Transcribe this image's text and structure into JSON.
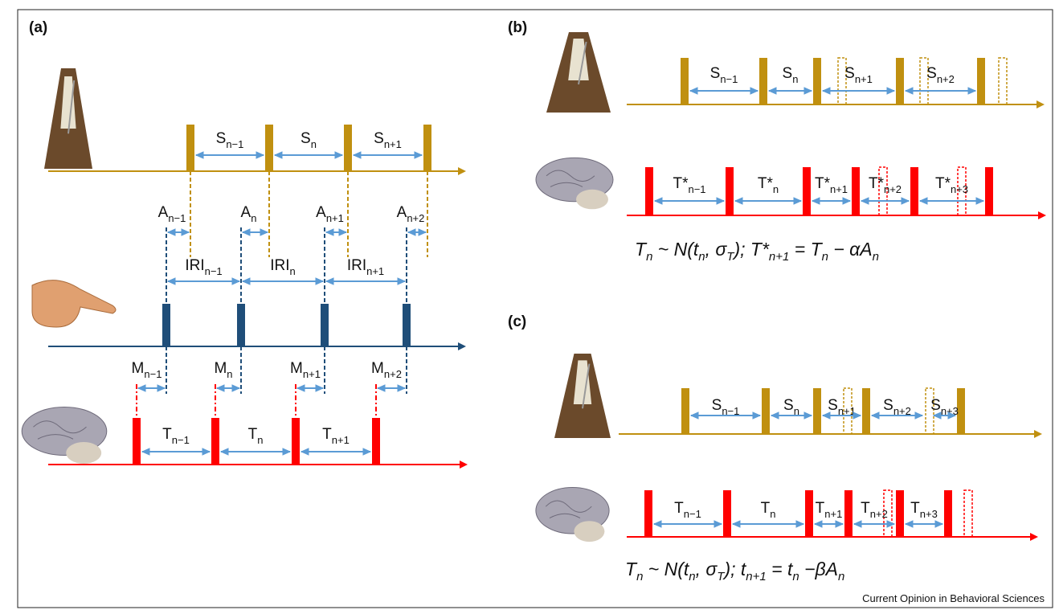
{
  "panels": [
    {
      "label": "(a)"
    },
    {
      "label": "(b)"
    },
    {
      "label": "(c)"
    }
  ],
  "panel_a": {
    "stimulus_intervals": [
      {
        "base": "S",
        "sub": "n−1"
      },
      {
        "base": "S",
        "sub": "n"
      },
      {
        "base": "S",
        "sub": "n+1"
      }
    ],
    "asynchronies": [
      {
        "base": "A",
        "sub": "n−1"
      },
      {
        "base": "A",
        "sub": "n"
      },
      {
        "base": "A",
        "sub": "n+1"
      },
      {
        "base": "A",
        "sub": "n+2"
      }
    ],
    "inter_response_intervals": [
      {
        "base": "IRI",
        "sub": "n−1"
      },
      {
        "base": "IRI",
        "sub": "n"
      },
      {
        "base": "IRI",
        "sub": "n+1"
      }
    ],
    "motor_delays": [
      {
        "base": "M",
        "sub": "n−1"
      },
      {
        "base": "M",
        "sub": "n"
      },
      {
        "base": "M",
        "sub": "n+1"
      },
      {
        "base": "M",
        "sub": "n+2"
      }
    ],
    "timekeeper_intervals": [
      {
        "base": "T",
        "sub": "n−1"
      },
      {
        "base": "T",
        "sub": "n"
      },
      {
        "base": "T",
        "sub": "n+1"
      }
    ]
  },
  "panel_b": {
    "stimulus_intervals": [
      {
        "base": "S",
        "sub": "n−1"
      },
      {
        "base": "S",
        "sub": "n"
      },
      {
        "base": "S",
        "sub": "n+1"
      },
      {
        "base": "S",
        "sub": "n+2"
      }
    ],
    "timekeeper_intervals": [
      {
        "base": "T*",
        "sub": "n−1"
      },
      {
        "base": "T*",
        "sub": "n"
      },
      {
        "base": "T*",
        "sub": "n+1"
      },
      {
        "base": "T*",
        "sub": "n+2"
      },
      {
        "base": "T*",
        "sub": "n+3"
      }
    ],
    "formula": [
      {
        "t": "T",
        "s": "n"
      },
      {
        "t": " ~ N(t",
        "s": "n"
      },
      {
        "t": ", σ",
        "s": "T"
      },
      {
        "t": ");  T*",
        "s": "n+1"
      },
      {
        "t": " = T",
        "s": "n"
      },
      {
        "t": " − αA",
        "s": "n"
      }
    ]
  },
  "panel_c": {
    "stimulus_intervals": [
      {
        "base": "S",
        "sub": "n−1"
      },
      {
        "base": "S",
        "sub": "n"
      },
      {
        "base": "S",
        "sub": "n+1"
      },
      {
        "base": "S",
        "sub": "n+2"
      },
      {
        "base": "S",
        "sub": "n+3"
      }
    ],
    "timekeeper_intervals": [
      {
        "base": "T",
        "sub": "n−1"
      },
      {
        "base": "T",
        "sub": "n"
      },
      {
        "base": "T",
        "sub": "n+1"
      },
      {
        "base": "T",
        "sub": "n+2"
      },
      {
        "base": "T",
        "sub": "n+3"
      }
    ],
    "formula": [
      {
        "t": "T",
        "s": "n"
      },
      {
        "t": " ~ N(t",
        "s": "n"
      },
      {
        "t": ", σ",
        "s": "T"
      },
      {
        "t": "); t",
        "s": "n+1"
      },
      {
        "t": " = t",
        "s": "n"
      },
      {
        "t": " −βA",
        "s": "n"
      }
    ]
  },
  "credit": "Current Opinion in Behavioral Sciences"
}
